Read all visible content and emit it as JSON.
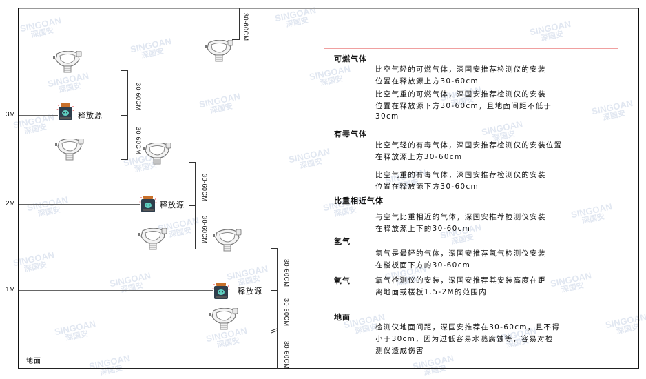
{
  "levels": {
    "m3": "3M",
    "m2": "2M",
    "m1": "1M",
    "ground": "地面"
  },
  "dimension_label": "30-60CM",
  "source_label": "释放源",
  "watermark": {
    "brand": "SINGOAN",
    "cn": "深国安"
  },
  "colors": {
    "panel_border": "#f0a0a0",
    "source_body": "#2f3e4c",
    "source_lid": "#c8702a",
    "source_face": "#5fd0c0"
  },
  "panel": {
    "sections": [
      {
        "title": "可燃气体",
        "paragraphs": [
          [
            "比空气轻的可燃气体，深国安推荐检测仪的安装",
            "位置在释放源上方30-60cm"
          ],
          [
            "比空气重的可燃气体，深国安推荐检测仪的安装",
            "位置在释放源下方30-60cm，且地面间距不低于",
            "30cm"
          ]
        ]
      },
      {
        "title": "有毒气体",
        "paragraphs": [
          [
            "比空气轻的有毒气体，深国安推荐检测仪的安装位置",
            "在释放源上方30-60cm"
          ],
          [
            "比空气重的有毒气体，深国安推荐检测仪的安装",
            "位置在释放源下方30-60cm"
          ]
        ]
      },
      {
        "title": "比重相近气体",
        "paragraphs": [
          [
            "与空气比重相近的气体，深国安推荐检测仪安装",
            "在释放源上下的30-60cm"
          ]
        ]
      },
      {
        "title": "氢气",
        "paragraphs": [
          [
            "氢气是最轻的气体，深国安推荐氢气检测仪安装",
            "在楼板面下方的30-60cm"
          ]
        ]
      },
      {
        "title": "氧气",
        "paragraphs": [
          [
            "氧气检测仪的安装，深国安推荐其安装高度在距",
            "离地面或楼板1.5-2M的范围内"
          ]
        ]
      },
      {
        "title": "地面",
        "paragraphs": [
          [
            "检测仪地面间距，深国安推荐在30-60cm，且不得",
            "小于30cm，因为过低容易水溅腐蚀等，容易对检",
            "测仪造成伤害"
          ]
        ]
      }
    ]
  }
}
